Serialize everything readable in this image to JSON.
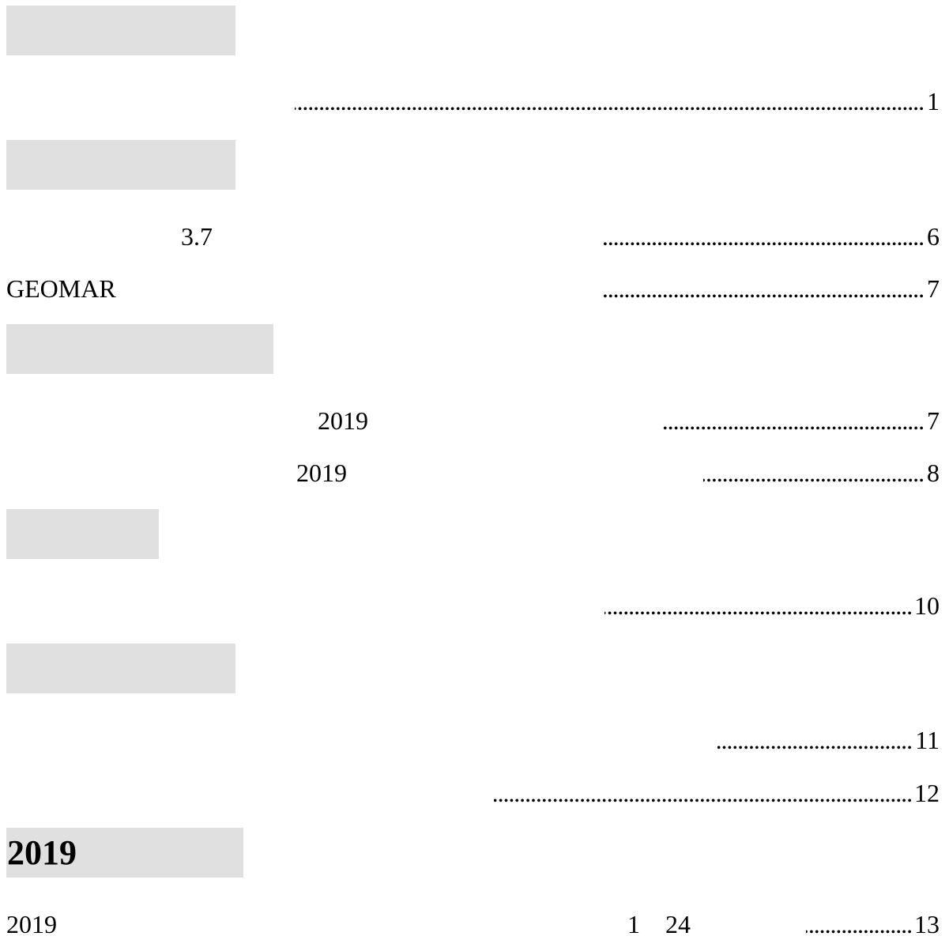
{
  "sections": [
    {
      "heading": ""
    },
    {
      "heading": ""
    },
    {
      "heading": ""
    },
    {
      "heading": ""
    },
    {
      "heading": ""
    },
    {
      "heading": "2019"
    }
  ],
  "entries": [
    {
      "text_a": "",
      "text_b": "",
      "page": "1"
    },
    {
      "text_a": "3.7",
      "text_b": "",
      "page": "6"
    },
    {
      "text_a": "GEOMAR",
      "text_b": "",
      "page": "7"
    },
    {
      "text_a": "2019",
      "text_b": "",
      "page": "7"
    },
    {
      "text_a": "2019",
      "text_b": "",
      "page": "8"
    },
    {
      "text_a": "",
      "text_b": "",
      "page": "10"
    },
    {
      "text_a": "",
      "text_b": "",
      "page": "11"
    },
    {
      "text_a": "",
      "text_b": "",
      "page": "12"
    },
    {
      "text_a": "2019",
      "text_b": "1",
      "text_c": "24",
      "page": "13"
    }
  ],
  "leader_char": "."
}
